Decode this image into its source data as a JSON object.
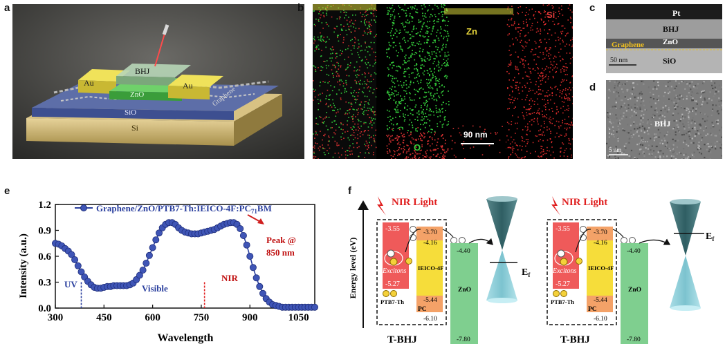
{
  "panels": {
    "a": {
      "letter": "a",
      "labels": {
        "au_left": "Au",
        "bhj": "BHJ",
        "au_right": "Au",
        "zno": "ZnO",
        "sio2": "SiO",
        "si": "Si",
        "graphene": "Graphene"
      }
    },
    "b": {
      "letter": "b",
      "labels": {
        "zn": "Zn",
        "si": "Si",
        "o": "O",
        "scale": "90 nm"
      }
    },
    "c": {
      "letter": "c",
      "labels": {
        "pt": "Pt",
        "bhj": "BHJ",
        "graphene": "Graphene",
        "zno": "ZnO",
        "scale": "50 nm",
        "sio2": "SiO"
      }
    },
    "d": {
      "letter": "d",
      "labels": {
        "bhj": "BHJ",
        "scale": "5 nm"
      }
    },
    "e": {
      "letter": "e",
      "annotations": {
        "uv": "UV",
        "visible": "Visible",
        "nir": "NIR",
        "peak_line1": "Peak @",
        "peak_line2": "850 nm"
      }
    },
    "f": {
      "letter": "f",
      "ylabel": "Energy level (eV)",
      "left": {
        "nir": "NIR Light",
        "ptb7_lumo": "-3.55",
        "ptb7_homo": "-5.27",
        "excitons": "Excitons",
        "ptb7_name": "PTB7-Th",
        "ieico_lumo": "-3.70",
        "ieico_2": "-4.16",
        "ieico_name": "IEICO-4F",
        "pcbm_lumo": "-5.44",
        "pcbm_name": "PC",
        "pcbm_homo": "-6.10",
        "zno_top": "-4.40",
        "zno_name": "ZnO",
        "zno_bottom": "-7.80",
        "ef": "E",
        "title": "T-BHJ"
      },
      "right": {
        "nir": "NIR Light",
        "ptb7_lumo": "-3.55",
        "ptb7_homo": "-5.27",
        "excitons": "Excitons",
        "ptb7_name": "PTB7-Th",
        "ieico_lumo": "-3.70",
        "ieico_2": "-4.16",
        "ieico_name": "IEICO-4F",
        "pcbm_lumo": "-5.44",
        "pcbm_name": "PC",
        "pcbm_homo": "-6.10",
        "zno_top": "-4.40",
        "zno_name": "ZnO",
        "zno_bottom": "-7.80",
        "ef": "E",
        "title": "T-BHJ"
      }
    }
  },
  "chart_data": {
    "type": "line",
    "series": [
      {
        "name": "Graphene/ZnO/PTB7-Th:IEICO-4F:PC71BM",
        "color": "#2a3f9e",
        "x": [
          300,
          310,
          320,
          330,
          340,
          350,
          360,
          370,
          380,
          390,
          400,
          410,
          420,
          430,
          440,
          450,
          460,
          470,
          480,
          490,
          500,
          510,
          520,
          530,
          540,
          550,
          560,
          570,
          580,
          590,
          600,
          610,
          620,
          630,
          640,
          650,
          660,
          670,
          680,
          690,
          700,
          710,
          720,
          730,
          740,
          750,
          760,
          770,
          780,
          790,
          800,
          810,
          820,
          830,
          840,
          850,
          860,
          870,
          880,
          890,
          900,
          910,
          920,
          930,
          940,
          950,
          960,
          970,
          980,
          990,
          1000,
          1010,
          1020,
          1030,
          1040,
          1050,
          1060,
          1070,
          1080,
          1090,
          1100
        ],
        "y": [
          0.75,
          0.74,
          0.72,
          0.69,
          0.66,
          0.62,
          0.56,
          0.49,
          0.42,
          0.36,
          0.31,
          0.27,
          0.24,
          0.23,
          0.23,
          0.24,
          0.25,
          0.25,
          0.26,
          0.26,
          0.26,
          0.26,
          0.26,
          0.27,
          0.29,
          0.33,
          0.38,
          0.44,
          0.52,
          0.61,
          0.7,
          0.79,
          0.87,
          0.93,
          0.97,
          0.99,
          0.99,
          0.97,
          0.93,
          0.9,
          0.88,
          0.87,
          0.86,
          0.86,
          0.86,
          0.87,
          0.88,
          0.89,
          0.9,
          0.91,
          0.93,
          0.95,
          0.97,
          0.98,
          0.99,
          0.99,
          0.97,
          0.92,
          0.84,
          0.73,
          0.6,
          0.47,
          0.35,
          0.25,
          0.17,
          0.11,
          0.07,
          0.04,
          0.03,
          0.02,
          0.01,
          0.01,
          0.01,
          0.01,
          0.01,
          0.01,
          0.01,
          0.01,
          0.01,
          0.01,
          0.01
        ]
      }
    ],
    "xlabel": "Wavelength",
    "ylabel": "Intensity (a.u.)",
    "xlim": [
      300,
      1100
    ],
    "ylim": [
      0.0,
      1.2
    ],
    "xticks": [
      "300",
      "450",
      "600",
      "750",
      "900",
      "1050"
    ],
    "yticks": [
      "0.0",
      "0.3",
      "0.6",
      "0.9",
      "1.2"
    ],
    "legend_text": "Graphene/ZnO/PTB7-Th:IEICO-4F:PC",
    "legend_sub": "71",
    "legend_suffix": "BM",
    "legend_position": "top",
    "vlines": [
      {
        "x": 380,
        "color": "#2a3f9e"
      },
      {
        "x": 760,
        "color": "#e02020"
      }
    ],
    "grid": false
  }
}
